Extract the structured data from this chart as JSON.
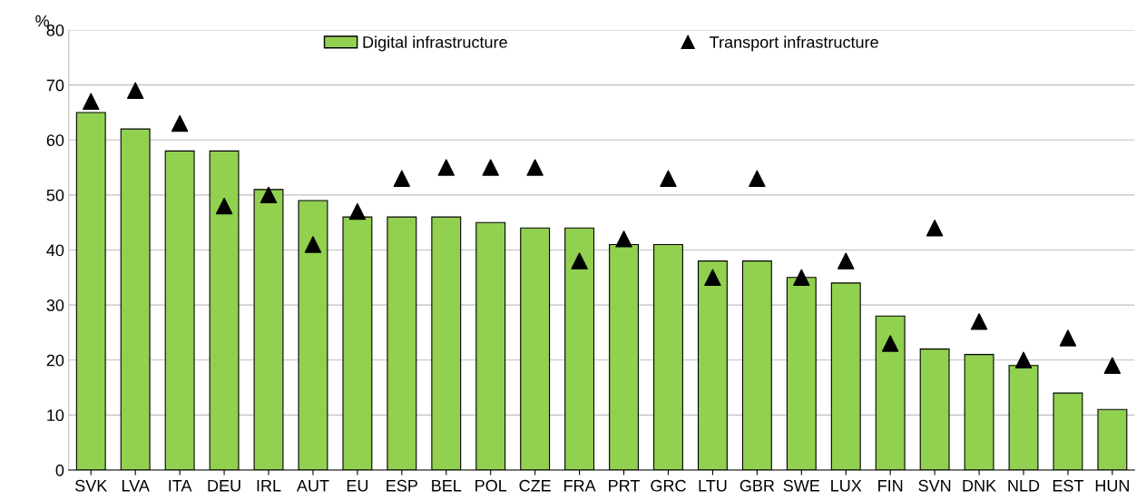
{
  "chart_data": {
    "type": "bar",
    "ylabel": "%",
    "categories": [
      "SVK",
      "LVA",
      "ITA",
      "DEU",
      "IRL",
      "AUT",
      "EU",
      "ESP",
      "BEL",
      "POL",
      "CZE",
      "FRA",
      "PRT",
      "GRC",
      "LTU",
      "GBR",
      "SWE",
      "LUX",
      "FIN",
      "SVN",
      "DNK",
      "NLD",
      "EST",
      "HUN"
    ],
    "series": [
      {
        "name": "Digital infrastructure",
        "color": "#92d050",
        "values": [
          65,
          62,
          58,
          58,
          51,
          49,
          46,
          46,
          46,
          45,
          44,
          44,
          41,
          41,
          38,
          38,
          35,
          34,
          28,
          22,
          21,
          19,
          14,
          11
        ]
      },
      {
        "name": "Transport infrastructure",
        "type": "scatter",
        "color": "#000000",
        "marker": "triangle",
        "values": [
          67,
          69,
          63,
          48,
          50,
          41,
          47,
          53,
          55,
          55,
          55,
          38,
          42,
          53,
          35,
          53,
          35,
          38,
          23,
          44,
          27,
          20,
          24,
          19
        ]
      }
    ],
    "ylim": [
      0,
      80
    ],
    "yticks": [
      0,
      10,
      20,
      30,
      40,
      50,
      60,
      70,
      80
    ],
    "grid": "y",
    "legend": "top"
  }
}
